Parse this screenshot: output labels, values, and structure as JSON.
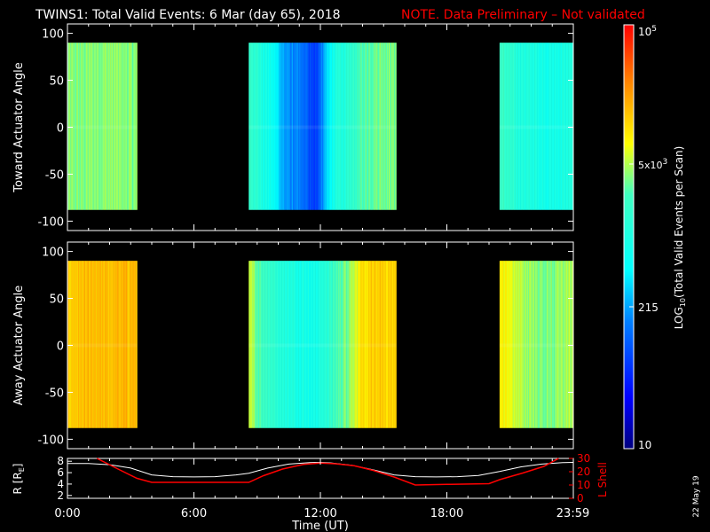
{
  "header": {
    "title": "TWINS1: Total Valid Events:  6 Mar (day  65), 2018",
    "note": "NOTE. Data Preliminary – Not validated",
    "note_color": "#ff0000"
  },
  "side_stamp": "22 May 19",
  "chart_data": [
    {
      "type": "heatmap",
      "panel": "top",
      "ylabel": "Toward Actuator Angle",
      "yticks": [
        "100",
        "50",
        "0",
        "-50",
        "-100"
      ],
      "ylim": [
        -110,
        110
      ],
      "data_ylim": [
        -88,
        90
      ],
      "xlim_hours": [
        0,
        24
      ],
      "valid_intervals_hours": [
        [
          0,
          3.3
        ],
        [
          8.6,
          15.6
        ],
        [
          20.5,
          24
        ]
      ],
      "profile_log10": [
        [
          0,
          3.55
        ],
        [
          0.5,
          3.55
        ],
        [
          1.5,
          3.6
        ],
        [
          2.5,
          3.58
        ],
        [
          3.3,
          3.55
        ],
        [
          8.6,
          3.3
        ],
        [
          9.2,
          3.05
        ],
        [
          9.8,
          2.75
        ],
        [
          10.3,
          2.3
        ],
        [
          10.8,
          2.2
        ],
        [
          11.3,
          2.05
        ],
        [
          11.7,
          1.75
        ],
        [
          12.3,
          2.55
        ],
        [
          12.8,
          3.05
        ],
        [
          13.3,
          3.1
        ],
        [
          13.8,
          3.35
        ],
        [
          14.3,
          3.5
        ],
        [
          14.8,
          3.55
        ],
        [
          15.6,
          3.55
        ],
        [
          20.5,
          3.35
        ],
        [
          21.2,
          3.1
        ],
        [
          22.0,
          3.0
        ],
        [
          23.0,
          2.9
        ],
        [
          24.0,
          3.05
        ]
      ]
    },
    {
      "type": "heatmap",
      "panel": "middle",
      "ylabel": "Away Actuator Angle",
      "yticks": [
        "100",
        "50",
        "0",
        "-50",
        "-100"
      ],
      "ylim": [
        -110,
        110
      ],
      "data_ylim": [
        -88,
        90
      ],
      "xlim_hours": [
        0,
        24
      ],
      "valid_intervals_hours": [
        [
          0,
          3.3
        ],
        [
          8.6,
          15.6
        ],
        [
          20.5,
          24
        ]
      ],
      "profile_log10": [
        [
          0,
          4.1
        ],
        [
          0.5,
          4.15
        ],
        [
          1.5,
          4.15
        ],
        [
          2.5,
          4.2
        ],
        [
          3.3,
          4.2
        ],
        [
          8.6,
          3.7
        ],
        [
          9.2,
          3.4
        ],
        [
          9.8,
          3.2
        ],
        [
          10.3,
          3.05
        ],
        [
          10.8,
          3.0
        ],
        [
          11.3,
          2.95
        ],
        [
          11.7,
          2.9
        ],
        [
          12.3,
          3.15
        ],
        [
          12.8,
          3.4
        ],
        [
          13.3,
          3.6
        ],
        [
          13.8,
          3.9
        ],
        [
          14.3,
          4.05
        ],
        [
          14.8,
          4.1
        ],
        [
          15.6,
          4.05
        ],
        [
          20.5,
          4.0
        ],
        [
          21.2,
          3.75
        ],
        [
          22.0,
          3.6
        ],
        [
          23.0,
          3.55
        ],
        [
          24.0,
          3.7
        ]
      ]
    },
    {
      "type": "line",
      "panel": "bottom",
      "ylabel_left": "R [R",
      "ylabel_left_sub": "E",
      "ylabel_left_end": "]",
      "ylabel_right": "L Shell",
      "yticks_left": [
        "8",
        "6",
        "4",
        "2"
      ],
      "yticks_right": [
        "30",
        "20",
        "10",
        "0"
      ],
      "ylim_left": [
        1.5,
        8.5
      ],
      "ylim_right": [
        0,
        30
      ],
      "xlabel": "Time (UT)",
      "xticks": [
        "0:00",
        "6:00",
        "12:00",
        "18:00",
        "23:59"
      ],
      "xtick_hours": [
        0,
        6,
        12,
        18,
        23.98
      ],
      "series": [
        {
          "axis": "left",
          "color": "#ffffff",
          "x_hours": [
            0,
            1,
            2,
            3,
            4,
            5,
            6,
            7,
            8,
            8.6,
            9.5,
            10.5,
            11.5,
            12,
            12.5,
            13.5,
            14.5,
            15.5,
            16.5,
            17.5,
            18.5,
            19.5,
            20.5,
            21.5,
            22.5,
            23.5,
            24
          ],
          "values": [
            7.6,
            7.6,
            7.4,
            6.8,
            5.6,
            5.3,
            5.25,
            5.3,
            5.6,
            5.9,
            6.8,
            7.5,
            7.75,
            7.8,
            7.7,
            7.3,
            6.5,
            5.6,
            5.3,
            5.25,
            5.3,
            5.5,
            6.2,
            7.0,
            7.5,
            7.75,
            7.8
          ]
        },
        {
          "axis": "right",
          "color": "#ff0000",
          "x_hours": [
            1.4,
            2.4,
            3.3,
            4.0,
            6.0,
            8.6,
            9.3,
            10.2,
            11.2,
            12.0,
            12.7,
            13.6,
            14.5,
            15.5,
            16.5,
            18.0,
            20.0,
            20.5,
            21.6,
            22.6,
            23.3
          ],
          "values": [
            30,
            22,
            15,
            12,
            12,
            12,
            17,
            22,
            25.5,
            26.5,
            26,
            24.5,
            21,
            16,
            10,
            10.5,
            11,
            14,
            19,
            24,
            30
          ]
        }
      ]
    }
  ],
  "colorbar": {
    "label_main": "LOG",
    "label_sub": "10",
    "label_rest": "(Total Valid Events per Scan)",
    "tick_top": {
      "base": "10",
      "exp": "5"
    },
    "tick_mid": {
      "base": "5x10",
      "exp": "3"
    },
    "tick_low": "215",
    "tick_bottom": "10",
    "range_log10": [
      1,
      5
    ]
  }
}
